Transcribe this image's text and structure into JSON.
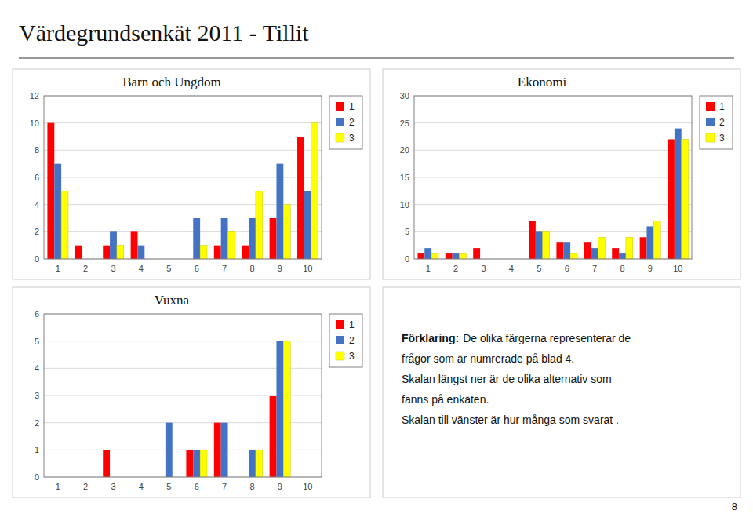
{
  "title": "Värdegrundsenkät 2011 - Tillit",
  "annotations": [
    "Förklaring:",
    "De olika färgerna representerar de",
    "frågor som är numrerade på blad 4.",
    "Skalan längst ner är de olika alternativ som",
    "fanns på enkäten.",
    "Skalan till vänster är hur många som svarat .",
    "8"
  ],
  "chart_data": [
    {
      "type": "bar",
      "title": "Barn och Ungdom",
      "categories": [
        "1",
        "2",
        "3",
        "4",
        "5",
        "6",
        "7",
        "8",
        "9",
        "10"
      ],
      "series": [
        {
          "name": "1",
          "color": "#FF0000",
          "values": [
            10,
            1,
            1,
            2,
            0,
            0,
            1,
            1,
            3,
            9
          ]
        },
        {
          "name": "2",
          "color": "#4472C4",
          "values": [
            7,
            0,
            2,
            1,
            0,
            3,
            3,
            3,
            7,
            5
          ]
        },
        {
          "name": "3",
          "color": "#FFFF00",
          "values": [
            5,
            0,
            1,
            0,
            0,
            1,
            2,
            5,
            4,
            10
          ]
        }
      ],
      "ylim": [
        0,
        12
      ],
      "yticks": [
        0,
        2,
        4,
        6,
        8,
        10,
        12
      ],
      "grid": true,
      "legend": "right"
    },
    {
      "type": "bar",
      "title": "Ekonomi",
      "categories": [
        "1",
        "2",
        "3",
        "4",
        "5",
        "6",
        "7",
        "8",
        "9",
        "10"
      ],
      "series": [
        {
          "name": "1",
          "color": "#FF0000",
          "values": [
            1,
            1,
            2,
            0,
            7,
            3,
            3,
            2,
            4,
            22
          ]
        },
        {
          "name": "2",
          "color": "#4472C4",
          "values": [
            2,
            1,
            0,
            0,
            5,
            3,
            2,
            1,
            6,
            24
          ]
        },
        {
          "name": "3",
          "color": "#FFFF00",
          "values": [
            1,
            1,
            0,
            0,
            5,
            1,
            4,
            4,
            7,
            22
          ]
        }
      ],
      "ylim": [
        0,
        30
      ],
      "yticks": [
        0,
        5,
        10,
        15,
        20,
        25,
        30
      ],
      "grid": true,
      "legend": "right"
    },
    {
      "type": "bar",
      "title": "Vuxna",
      "categories": [
        "1",
        "2",
        "3",
        "4",
        "5",
        "6",
        "7",
        "8",
        "9",
        "10"
      ],
      "series": [
        {
          "name": "1",
          "color": "#FF0000",
          "values": [
            0,
            0,
            1,
            0,
            0,
            1,
            2,
            0,
            3,
            0
          ]
        },
        {
          "name": "2",
          "color": "#4472C4",
          "values": [
            0,
            0,
            0,
            0,
            2,
            1,
            2,
            1,
            5,
            0
          ]
        },
        {
          "name": "3",
          "color": "#FFFF00",
          "values": [
            0,
            0,
            0,
            0,
            0,
            1,
            0,
            1,
            5,
            0
          ]
        }
      ],
      "ylim": [
        0,
        6
      ],
      "yticks": [
        0,
        1,
        2,
        3,
        4,
        5,
        6
      ],
      "grid": true,
      "legend": "right"
    }
  ]
}
